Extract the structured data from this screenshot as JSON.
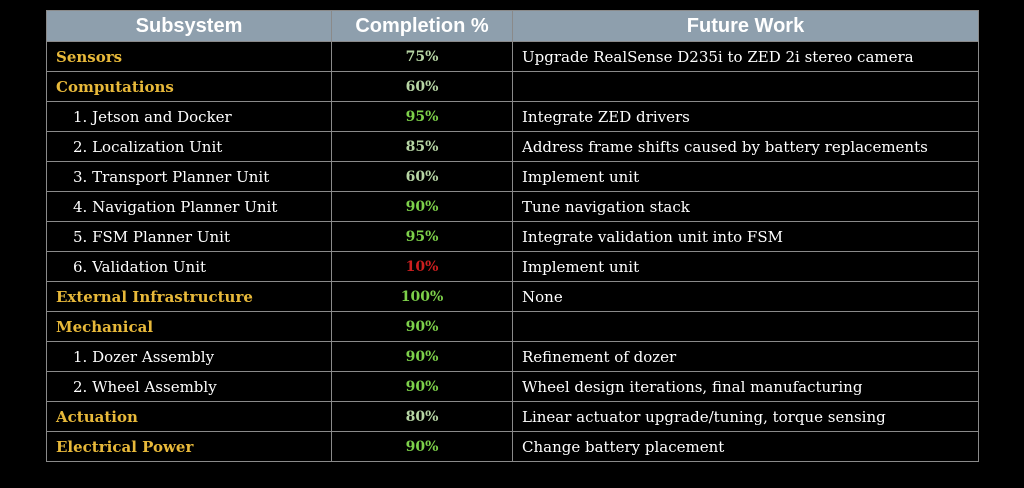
{
  "colors": {
    "header_bg": "#8e9fad",
    "top_level_label": "#e8b93a",
    "pct_high": "#7dd14a",
    "pct_mid": "#b7d6a4",
    "pct_low": "#cc1f1f"
  },
  "table": {
    "headers": [
      "Subsystem",
      "Completion %",
      "Future Work"
    ],
    "rows": [
      {
        "subsystem": "Sensors",
        "completion": "75%",
        "future_work": "Upgrade RealSense D235i to ZED 2i stereo camera",
        "level": "top",
        "tone": "mid"
      },
      {
        "subsystem": "Computations",
        "completion": "60%",
        "future_work": "",
        "level": "top",
        "tone": "mid"
      },
      {
        "subsystem": "1. Jetson and Docker",
        "completion": "95%",
        "future_work": "Integrate ZED drivers",
        "level": "child",
        "tone": "high"
      },
      {
        "subsystem": "2. Localization Unit",
        "completion": "85%",
        "future_work": "Address frame shifts caused by battery replacements",
        "level": "child",
        "tone": "mid"
      },
      {
        "subsystem": "3. Transport Planner Unit",
        "completion": "60%",
        "future_work": "Implement unit",
        "level": "child",
        "tone": "mid"
      },
      {
        "subsystem": "4. Navigation Planner Unit",
        "completion": "90%",
        "future_work": "Tune navigation stack",
        "level": "child",
        "tone": "high"
      },
      {
        "subsystem": "5. FSM Planner Unit",
        "completion": "95%",
        "future_work": "Integrate validation unit into FSM",
        "level": "child",
        "tone": "high"
      },
      {
        "subsystem": "6. Validation Unit",
        "completion": "10%",
        "future_work": "Implement unit",
        "level": "child",
        "tone": "low"
      },
      {
        "subsystem": "External Infrastructure",
        "completion": "100%",
        "future_work": "None",
        "level": "top",
        "tone": "high"
      },
      {
        "subsystem": "Mechanical",
        "completion": "90%",
        "future_work": "",
        "level": "top",
        "tone": "high"
      },
      {
        "subsystem": "1. Dozer Assembly",
        "completion": "90%",
        "future_work": "Refinement of dozer",
        "level": "child",
        "tone": "high"
      },
      {
        "subsystem": "2. Wheel Assembly",
        "completion": "90%",
        "future_work": "Wheel design iterations, final manufacturing",
        "level": "child",
        "tone": "high"
      },
      {
        "subsystem": "Actuation",
        "completion": "80%",
        "future_work": "Linear actuator upgrade/tuning, torque sensing",
        "level": "top",
        "tone": "mid"
      },
      {
        "subsystem": "Electrical Power",
        "completion": "90%",
        "future_work": "Change battery placement",
        "level": "top",
        "tone": "high"
      }
    ]
  }
}
